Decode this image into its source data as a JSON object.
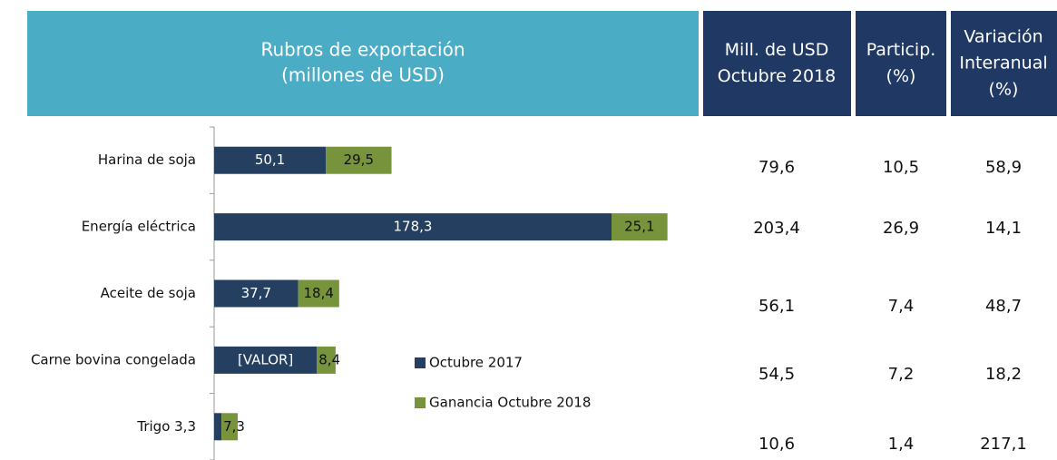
{
  "header": {
    "title_lines": [
      "Rubros de exportación",
      "(millones de USD)"
    ]
  },
  "chart_data": {
    "type": "bar",
    "orientation": "horizontal",
    "stacked": true,
    "categories": [
      "Harina de soja",
      "Energía eléctrica",
      "Aceite de soja",
      "Carne bovina congelada",
      "Trigo 3,3"
    ],
    "series": [
      {
        "name": "Octubre 2017",
        "color": "#243f60",
        "values": [
          50.1,
          178.3,
          37.7,
          46.1,
          3.3
        ],
        "value_labels": [
          "50,1",
          "178,3",
          "37,7",
          "[VALOR]",
          null
        ]
      },
      {
        "name": "Ganancia Octubre 2018",
        "color": "#77933c",
        "values": [
          29.5,
          25.1,
          18.4,
          8.4,
          7.3
        ],
        "value_labels": [
          "29,5",
          "25,1",
          "18,4",
          "8,4",
          "7,3"
        ]
      }
    ]
  },
  "table": {
    "columns": [
      [
        "Mill. de USD",
        "Octubre 2018"
      ],
      [
        "Particip.",
        "(%)"
      ],
      [
        "Variación",
        "Interanual",
        "(%)"
      ]
    ],
    "rows": [
      [
        "79,6",
        "10,5",
        "58,9"
      ],
      [
        "203,4",
        "26,9",
        "14,1"
      ],
      [
        "56,1",
        "7,4",
        "48,7"
      ],
      [
        "54,5",
        "7,2",
        "18,2"
      ],
      [
        "10,6",
        "1,4",
        "217,1"
      ]
    ]
  }
}
